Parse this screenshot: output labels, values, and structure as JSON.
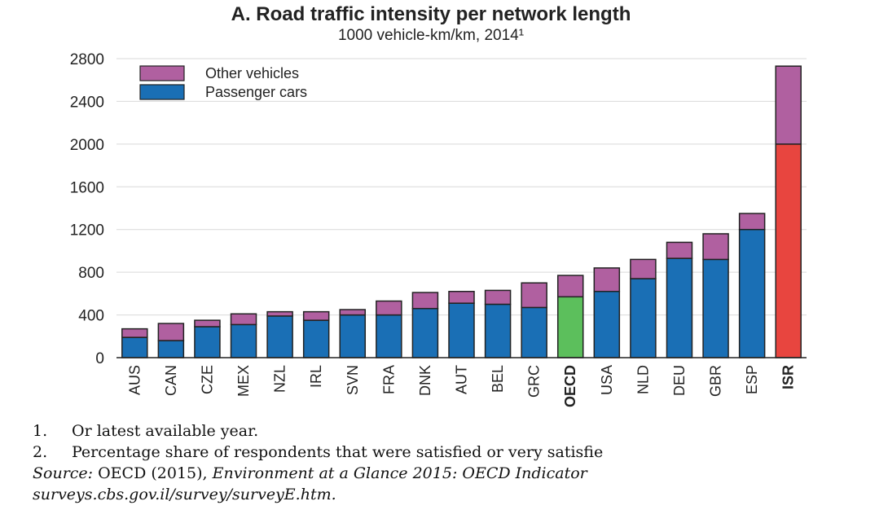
{
  "title": "A. Road traffic intensity per network length",
  "subtitle": "1000 vehicle-km/km, 2014¹",
  "chart_data": {
    "type": "bar",
    "stacked": true,
    "title": "A. Road traffic intensity per network length",
    "subtitle": "1000 vehicle-km/km, 2014¹",
    "xlabel": "",
    "ylabel": "",
    "ylim": [
      0,
      2800
    ],
    "yticks": [
      0,
      400,
      800,
      1200,
      1600,
      2000,
      2400,
      2800
    ],
    "grid": true,
    "legend_position": "top-left",
    "categories": [
      "AUS",
      "CAN",
      "CZE",
      "MEX",
      "NZL",
      "IRL",
      "SVN",
      "FRA",
      "DNK",
      "AUT",
      "BEL",
      "GRC",
      "OECD",
      "USA",
      "NLD",
      "DEU",
      "GBR",
      "ESP",
      "ISR"
    ],
    "bold_categories": [
      "OECD",
      "ISR"
    ],
    "series": [
      {
        "name": "Passenger cars",
        "color": "#1a6fb5",
        "values": [
          190,
          160,
          290,
          310,
          390,
          350,
          400,
          400,
          460,
          510,
          500,
          470,
          570,
          620,
          740,
          930,
          920,
          1200,
          2000
        ]
      },
      {
        "name": "Other vehicles",
        "color": "#b060a0",
        "values": [
          80,
          160,
          60,
          100,
          40,
          80,
          50,
          130,
          150,
          110,
          130,
          230,
          200,
          220,
          180,
          150,
          240,
          150,
          730
        ]
      }
    ],
    "highlight_colors": {
      "OECD": "#5cbf5c",
      "ISR": "#e8453f"
    },
    "legend": [
      "Other vehicles",
      "Passenger cars"
    ]
  },
  "notes": {
    "n1_num": "1.",
    "n1_text": "Or latest available year.",
    "n2_num": "2.",
    "n2_text": "Percentage share of respondents that were satisfied or very satisfie",
    "source_label": "Source:",
    "source_text1": " OECD (2015), ",
    "source_text2": "Environment at a Glance 2015: OECD Indicator",
    "source_url": "surveys.cbs.gov.il/survey/surveyE.htm."
  }
}
